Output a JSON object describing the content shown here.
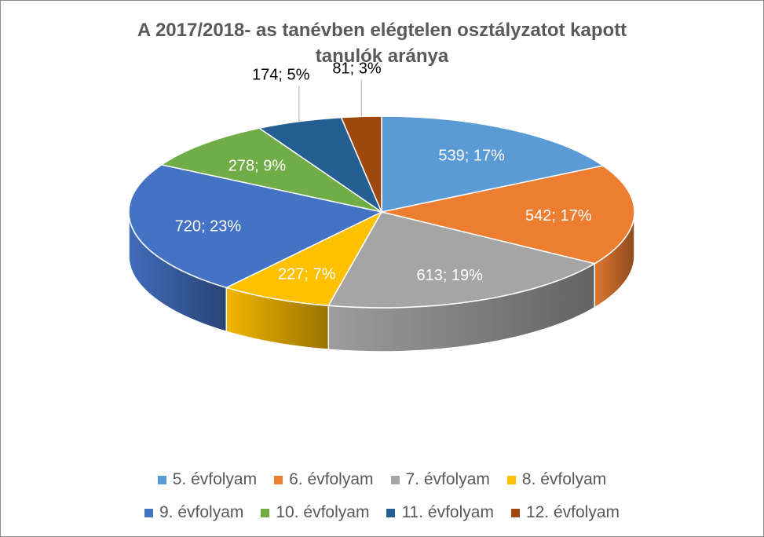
{
  "chart_data": {
    "type": "pie",
    "title_lines": [
      "A 2017/2018- as tanévben elégtelen osztályzatot kapott",
      "tanulók aránya"
    ],
    "categories": [
      "5. évfolyam",
      "6. évfolyam",
      "7. évfolyam",
      "8. évfolyam",
      "9. évfolyam",
      "10. évfolyam",
      "11. évfolyam",
      "12. évfolyam"
    ],
    "values": [
      539,
      542,
      613,
      227,
      720,
      278,
      174,
      81
    ],
    "data_labels": [
      "539; 17%",
      "542; 17%",
      "613; 19%",
      "227; 7%",
      "720; 23%",
      "278; 9%",
      "174; 5%",
      "81; 3%"
    ],
    "colors": [
      "#5b9bd5",
      "#ed7d31",
      "#a5a5a5",
      "#ffc000",
      "#4472c4",
      "#70ad47",
      "#255e91",
      "#9e480e"
    ],
    "three_d": true,
    "legend_position": "bottom"
  }
}
